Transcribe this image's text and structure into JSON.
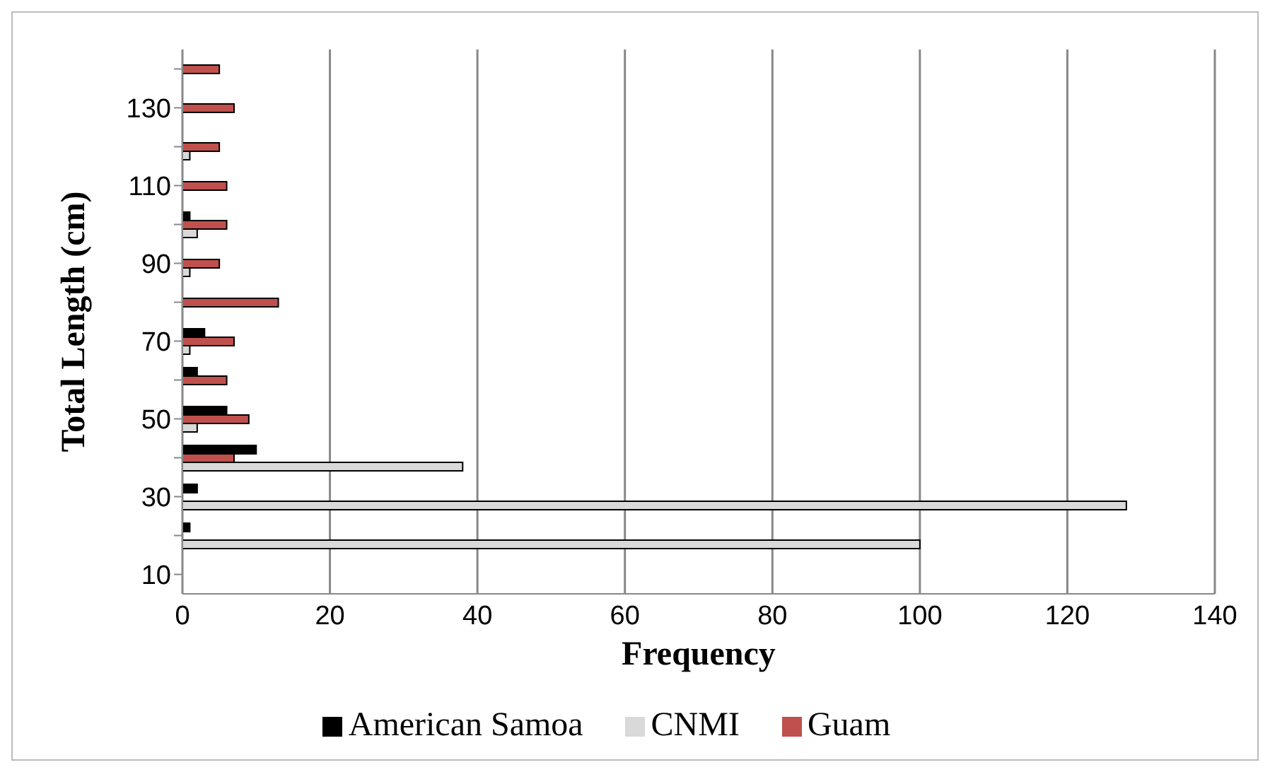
{
  "chart_data": {
    "type": "bar",
    "orientation": "horizontal",
    "xlabel": "Frequency",
    "ylabel": "Total Length (cm)",
    "categories": [
      null,
      "130",
      null,
      "110",
      null,
      "90",
      null,
      "70",
      null,
      "50",
      null,
      "30",
      null,
      "10"
    ],
    "series": [
      {
        "name": "American Samoa",
        "color": "#000000",
        "values": [
          null,
          null,
          null,
          null,
          1,
          null,
          null,
          3,
          2,
          6,
          10,
          2,
          1,
          null
        ]
      },
      {
        "name": "Guam",
        "color": "#c0504d",
        "values": [
          5,
          7,
          5,
          6,
          6,
          5,
          13,
          7,
          6,
          9,
          7,
          null,
          null,
          null
        ]
      },
      {
        "name": "CNMI",
        "color": "#d9d9d9",
        "values": [
          null,
          null,
          1,
          null,
          2,
          1,
          null,
          1,
          null,
          2,
          38,
          128,
          100,
          null
        ]
      }
    ],
    "xlim": [
      0,
      140
    ],
    "xticks": [
      0,
      20,
      40,
      60,
      80,
      100,
      120,
      140
    ],
    "grid": "x",
    "legend": "bottom"
  }
}
